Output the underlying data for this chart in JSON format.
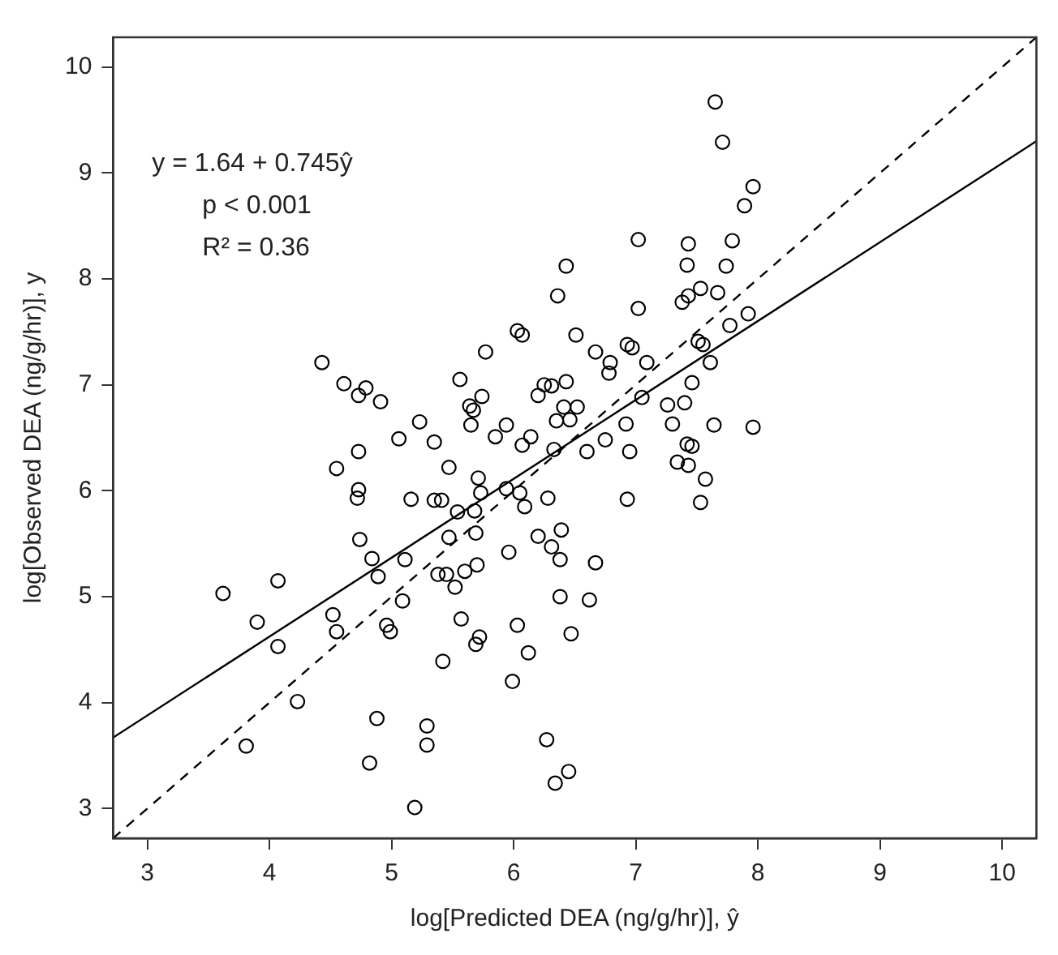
{
  "chart_data": {
    "type": "scatter",
    "xlabel": "log[Predicted DEA (ng/g/hr)], ŷ",
    "ylabel": "log[Observed DEA (ng/g/hr)], y",
    "xlim": [
      2.72,
      10.28
    ],
    "ylim": [
      2.72,
      10.28
    ],
    "xticks": [
      3,
      4,
      5,
      6,
      7,
      8,
      9,
      10
    ],
    "yticks": [
      3,
      4,
      5,
      6,
      7,
      8,
      9,
      10
    ],
    "grid": false,
    "legend": false,
    "marker": "circle",
    "annotations": [
      "y = 1.64 + 0.745ŷ",
      "p < 0.001",
      "R² = 0.36"
    ],
    "series": [
      {
        "color": "#000000",
        "x": [
          3.62,
          3.9,
          4.07,
          4.07,
          3.81,
          4.23,
          4.43,
          4.52,
          4.55,
          4.55,
          4.61,
          4.73,
          4.79,
          4.91,
          4.73,
          4.73,
          4.72,
          4.74,
          4.84,
          4.89,
          4.88,
          4.82,
          4.96,
          4.99,
          5.06,
          5.09,
          5.11,
          5.16,
          5.23,
          5.19,
          5.29,
          5.29,
          5.35,
          5.35,
          5.41,
          5.38,
          5.45,
          5.42,
          5.47,
          5.47,
          5.54,
          5.52,
          5.57,
          5.6,
          5.56,
          5.64,
          5.67,
          5.65,
          5.74,
          5.77,
          5.68,
          5.71,
          5.73,
          5.69,
          5.7,
          5.72,
          5.69,
          5.85,
          5.94,
          5.94,
          5.96,
          5.99,
          6.03,
          6.07,
          6.05,
          6.07,
          6.14,
          6.09,
          6.03,
          6.12,
          6.2,
          6.2,
          6.25,
          6.31,
          6.27,
          6.34,
          6.45,
          6.28,
          6.31,
          6.39,
          6.38,
          6.38,
          6.35,
          6.33,
          6.36,
          6.43,
          6.43,
          6.41,
          6.46,
          6.52,
          6.51,
          6.47,
          6.62,
          6.67,
          6.6,
          6.75,
          6.67,
          6.79,
          6.78,
          6.93,
          6.97,
          7.02,
          7.02,
          7.09,
          7.05,
          6.92,
          6.95,
          6.93,
          7.26,
          7.3,
          7.34,
          7.43,
          7.42,
          7.46,
          7.4,
          7.46,
          7.38,
          7.43,
          7.42,
          7.43,
          7.53,
          7.67,
          7.51,
          7.55,
          7.61,
          7.57,
          7.53,
          7.64,
          7.65,
          7.71,
          7.74,
          7.79,
          7.77,
          7.89,
          7.96,
          7.92,
          7.96
        ],
        "values": [
          5.03,
          4.76,
          5.15,
          4.53,
          3.59,
          4.01,
          7.21,
          4.83,
          4.67,
          6.21,
          7.01,
          6.9,
          6.97,
          6.84,
          6.37,
          6.01,
          5.93,
          5.54,
          5.36,
          5.19,
          3.85,
          3.43,
          4.73,
          4.67,
          6.49,
          4.96,
          5.35,
          5.92,
          6.65,
          3.01,
          3.78,
          3.6,
          6.46,
          5.91,
          5.91,
          5.21,
          5.21,
          4.39,
          6.22,
          5.56,
          5.8,
          5.09,
          4.79,
          5.24,
          7.05,
          6.8,
          6.76,
          6.62,
          6.89,
          7.31,
          5.81,
          6.12,
          5.98,
          5.6,
          5.3,
          4.62,
          4.55,
          6.51,
          6.62,
          6.02,
          5.42,
          4.2,
          7.51,
          7.47,
          5.98,
          6.43,
          6.51,
          5.85,
          4.73,
          4.47,
          5.57,
          6.9,
          7.0,
          6.99,
          3.65,
          3.24,
          3.35,
          5.93,
          5.47,
          5.63,
          5.35,
          5.0,
          6.66,
          6.39,
          7.84,
          8.12,
          7.03,
          6.79,
          6.67,
          6.79,
          7.47,
          4.65,
          4.97,
          5.32,
          6.37,
          6.48,
          7.31,
          7.21,
          7.11,
          7.38,
          7.35,
          7.72,
          8.37,
          7.21,
          6.88,
          6.63,
          6.37,
          5.92,
          6.81,
          6.63,
          6.27,
          6.24,
          6.44,
          6.42,
          6.83,
          7.02,
          7.78,
          7.84,
          8.13,
          8.33,
          7.91,
          7.87,
          7.41,
          7.38,
          7.21,
          6.11,
          5.89,
          6.62,
          9.67,
          9.29,
          8.12,
          8.36,
          7.56,
          8.69,
          8.87,
          7.67,
          6.6
        ]
      },
      {
        "type": "line",
        "color": "#000000",
        "line_style": "solid",
        "marker": "none",
        "x": [
          2.72,
          10.28
        ],
        "values": [
          3.67,
          9.3
        ]
      },
      {
        "type": "line",
        "color": "#000000",
        "line_style": "dashed",
        "marker": "none",
        "x": [
          2.72,
          10.28
        ],
        "values": [
          2.72,
          10.28
        ]
      }
    ]
  }
}
